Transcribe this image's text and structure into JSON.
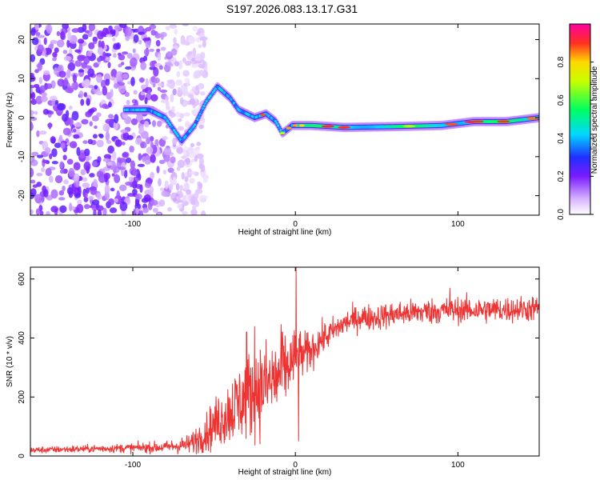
{
  "chart_data": [
    {
      "type": "heatmap",
      "title": "S197.2026.083.13.17.G31",
      "xlabel": "Height of straight line (km)",
      "ylabel": "Frequency (Hz)",
      "xlim": [
        -163,
        150
      ],
      "ylim": [
        -25,
        24
      ],
      "xticks": [
        -100,
        0,
        100
      ],
      "xtick_labels": [
        "-100",
        "0",
        "100"
      ],
      "yticks": [
        -20,
        -10,
        0,
        10,
        20
      ],
      "ytick_labels": [
        "-20",
        "-10",
        "0",
        "10",
        "20"
      ],
      "colorbar": {
        "label": "Normalized spectral amplitude",
        "range": [
          0,
          1
        ],
        "ticks": [
          0.0,
          0.2,
          0.4,
          0.6,
          0.8
        ],
        "tick_labels": [
          "0.0",
          "0.2",
          "0.4",
          "0.6",
          "0.8"
        ],
        "colormap": "rainbow (white-purple-blue-cyan-green-yellow-red-magenta)"
      },
      "ridge": [
        {
          "x": -105,
          "f": 2
        },
        {
          "x": -90,
          "f": 2
        },
        {
          "x": -80,
          "f": 0
        },
        {
          "x": -70,
          "f": -6
        },
        {
          "x": -62,
          "f": -2
        },
        {
          "x": -55,
          "f": 4
        },
        {
          "x": -48,
          "f": 8
        },
        {
          "x": -40,
          "f": 5
        },
        {
          "x": -35,
          "f": 2
        },
        {
          "x": -25,
          "f": 0
        },
        {
          "x": -18,
          "f": 1
        },
        {
          "x": -12,
          "f": -1
        },
        {
          "x": -8,
          "f": -4
        },
        {
          "x": -2,
          "f": -2
        },
        {
          "x": 10,
          "f": -2
        },
        {
          "x": 30,
          "f": -2.5
        },
        {
          "x": 60,
          "f": -2.3
        },
        {
          "x": 90,
          "f": -2
        },
        {
          "x": 110,
          "f": -1
        },
        {
          "x": 130,
          "f": -1
        },
        {
          "x": 150,
          "f": 0
        }
      ]
    },
    {
      "type": "line",
      "title": "",
      "xlabel": "Height of straight line (km)",
      "ylabel": "SNR (10 * v/v)",
      "xlim": [
        -163,
        150
      ],
      "ylim": [
        0,
        640
      ],
      "xticks": [
        -100,
        0,
        100
      ],
      "xtick_labels": [
        "-100",
        "0",
        "100"
      ],
      "yticks": [
        0,
        200,
        400,
        600
      ],
      "ytick_labels": [
        "0",
        "200",
        "400",
        "600"
      ],
      "color": "#ee3333",
      "envelope": {
        "x": [
          -163,
          -120,
          -80,
          -65,
          -55,
          -45,
          -35,
          -25,
          -15,
          -10,
          -5,
          -2,
          0,
          2,
          5,
          10,
          15,
          20,
          30,
          40,
          50,
          60,
          80,
          100,
          120,
          150
        ],
        "mean": [
          20,
          25,
          30,
          40,
          80,
          130,
          180,
          220,
          250,
          270,
          300,
          320,
          330,
          340,
          340,
          360,
          390,
          410,
          450,
          470,
          470,
          480,
          490,
          495,
          495,
          500
        ],
        "spread": [
          10,
          12,
          18,
          30,
          60,
          90,
          120,
          140,
          140,
          130,
          110,
          100,
          90,
          80,
          70,
          60,
          50,
          45,
          40,
          40,
          40,
          40,
          40,
          40,
          40,
          40
        ]
      },
      "peaks": [
        {
          "x": 0.5,
          "y": 640
        },
        {
          "x": -25,
          "y": 440
        },
        {
          "x": -30,
          "y": 420
        },
        {
          "x": -8,
          "y": 420
        },
        {
          "x": 95,
          "y": 570
        }
      ],
      "dips": [
        {
          "x": 2,
          "y": 50
        }
      ]
    }
  ]
}
